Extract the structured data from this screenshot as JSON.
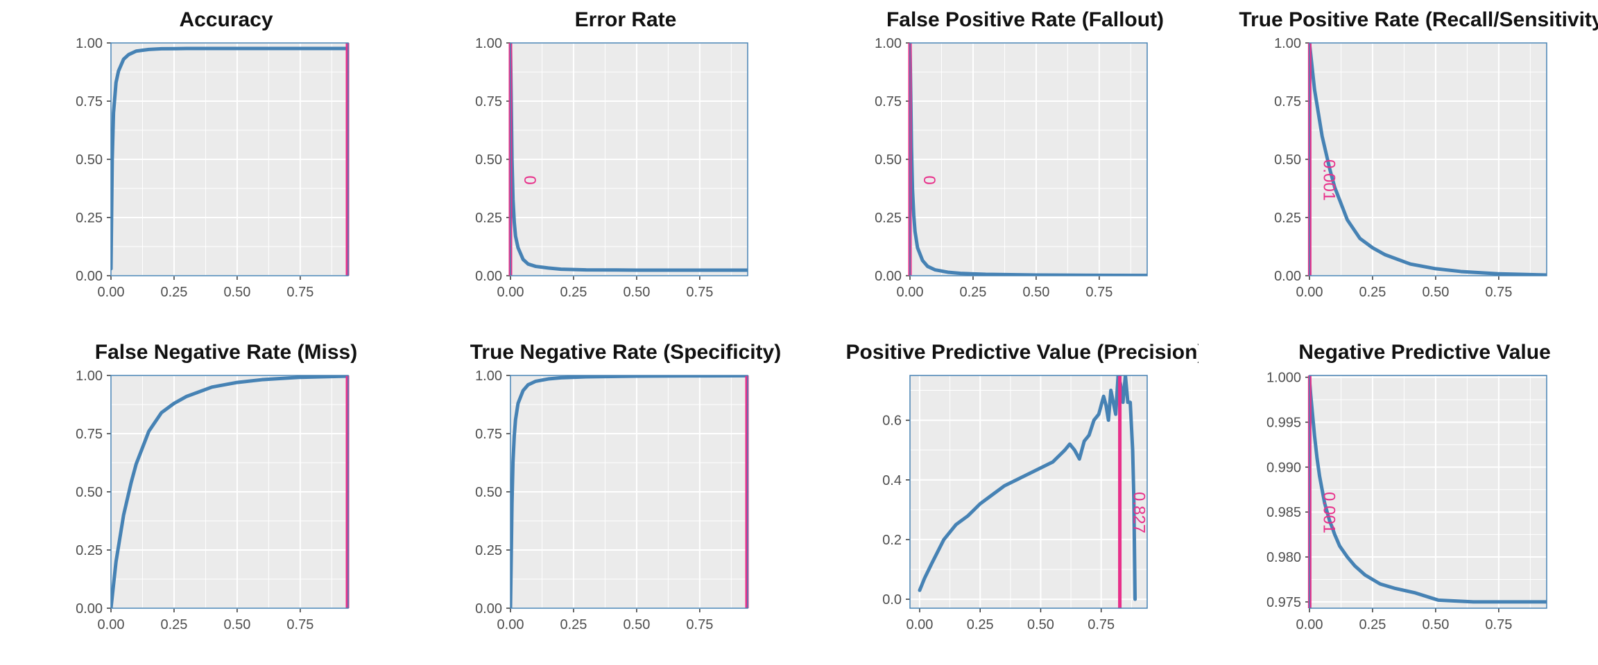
{
  "colors": {
    "curve": "#4682B4",
    "vline": "#E8308A",
    "panel_bg": "#EBEBEB",
    "grid": "#FFFFFF",
    "border": "#4682B4",
    "tick_text": "#4D4D4D"
  },
  "chart_data": [
    {
      "type": "line",
      "title": "Accuracy",
      "xlim": [
        0,
        0.94
      ],
      "ylim": [
        0,
        1.0
      ],
      "xticks": [
        "0.00",
        "0.25",
        "0.50",
        "0.75"
      ],
      "yticks": [
        "0.00",
        "0.25",
        "0.50",
        "0.75",
        "1.00"
      ],
      "grid": true,
      "x": [
        0.0,
        0.005,
        0.01,
        0.02,
        0.03,
        0.05,
        0.07,
        0.1,
        0.15,
        0.2,
        0.3,
        0.5,
        0.7,
        0.94
      ],
      "y": [
        0.03,
        0.5,
        0.7,
        0.83,
        0.88,
        0.93,
        0.95,
        0.965,
        0.972,
        0.975,
        0.976,
        0.976,
        0.976,
        0.976
      ],
      "vline": {
        "x": 0.94,
        "label": ""
      }
    },
    {
      "type": "line",
      "title": "Error Rate",
      "xlim": [
        0,
        0.94
      ],
      "ylim": [
        0,
        1.0
      ],
      "xticks": [
        "0.00",
        "0.25",
        "0.50",
        "0.75"
      ],
      "yticks": [
        "0.00",
        "0.25",
        "0.50",
        "0.75",
        "1.00"
      ],
      "grid": true,
      "x": [
        0.0,
        0.003,
        0.006,
        0.01,
        0.015,
        0.02,
        0.03,
        0.05,
        0.07,
        0.1,
        0.15,
        0.2,
        0.3,
        0.5,
        0.7,
        0.94
      ],
      "y": [
        0.98,
        0.75,
        0.5,
        0.33,
        0.23,
        0.17,
        0.12,
        0.07,
        0.05,
        0.04,
        0.033,
        0.028,
        0.025,
        0.024,
        0.024,
        0.024
      ],
      "vline": {
        "x": 0.0,
        "label": "0"
      }
    },
    {
      "type": "line",
      "title": "False Positive Rate (Fallout)",
      "xlim": [
        0,
        0.94
      ],
      "ylim": [
        0,
        1.0
      ],
      "xticks": [
        "0.00",
        "0.25",
        "0.50",
        "0.75"
      ],
      "yticks": [
        "0.00",
        "0.25",
        "0.50",
        "0.75",
        "1.00"
      ],
      "grid": true,
      "x": [
        0.0,
        0.003,
        0.006,
        0.01,
        0.015,
        0.02,
        0.03,
        0.05,
        0.07,
        0.1,
        0.15,
        0.2,
        0.3,
        0.5,
        0.7,
        0.94
      ],
      "y": [
        1.0,
        0.78,
        0.55,
        0.37,
        0.26,
        0.19,
        0.12,
        0.065,
        0.04,
        0.025,
        0.015,
        0.01,
        0.006,
        0.003,
        0.002,
        0.001
      ],
      "vline": {
        "x": 0.0,
        "label": "0"
      }
    },
    {
      "type": "line",
      "title": "True Positive Rate (Recall/Sensitivity)",
      "xlim": [
        0,
        0.94
      ],
      "ylim": [
        0,
        1.0
      ],
      "xticks": [
        "0.00",
        "0.25",
        "0.50",
        "0.75"
      ],
      "yticks": [
        "0.00",
        "0.25",
        "0.50",
        "0.75",
        "1.00"
      ],
      "grid": true,
      "x": [
        0.0,
        0.02,
        0.05,
        0.08,
        0.1,
        0.15,
        0.2,
        0.25,
        0.3,
        0.4,
        0.5,
        0.6,
        0.75,
        0.94
      ],
      "y": [
        1.0,
        0.8,
        0.6,
        0.46,
        0.38,
        0.24,
        0.16,
        0.12,
        0.09,
        0.05,
        0.03,
        0.018,
        0.008,
        0.003
      ],
      "vline": {
        "x": 0.001,
        "label": "0.001"
      }
    },
    {
      "type": "line",
      "title": "False Negative Rate (Miss)",
      "xlim": [
        0,
        0.94
      ],
      "ylim": [
        0,
        1.0
      ],
      "xticks": [
        "0.00",
        "0.25",
        "0.50",
        "0.75"
      ],
      "yticks": [
        "0.00",
        "0.25",
        "0.50",
        "0.75",
        "1.00"
      ],
      "grid": true,
      "x": [
        0.0,
        0.02,
        0.05,
        0.08,
        0.1,
        0.15,
        0.2,
        0.25,
        0.3,
        0.4,
        0.5,
        0.6,
        0.75,
        0.94
      ],
      "y": [
        0.0,
        0.2,
        0.4,
        0.54,
        0.62,
        0.76,
        0.84,
        0.88,
        0.91,
        0.95,
        0.97,
        0.982,
        0.992,
        0.997
      ],
      "vline": {
        "x": 0.94,
        "label": ""
      }
    },
    {
      "type": "line",
      "title": "True Negative Rate (Specificity)",
      "xlim": [
        0,
        0.94
      ],
      "ylim": [
        0,
        1.0
      ],
      "xticks": [
        "0.00",
        "0.25",
        "0.50",
        "0.75"
      ],
      "yticks": [
        "0.00",
        "0.25",
        "0.50",
        "0.75",
        "1.00"
      ],
      "grid": true,
      "x": [
        0.0,
        0.003,
        0.006,
        0.01,
        0.015,
        0.02,
        0.03,
        0.05,
        0.07,
        0.1,
        0.15,
        0.2,
        0.3,
        0.5,
        0.7,
        0.94
      ],
      "y": [
        0.0,
        0.22,
        0.45,
        0.63,
        0.74,
        0.81,
        0.88,
        0.935,
        0.96,
        0.975,
        0.985,
        0.99,
        0.994,
        0.997,
        0.998,
        0.999
      ],
      "vline": {
        "x": 0.94,
        "label": ""
      }
    },
    {
      "type": "line",
      "title": "Positive Predictive Value (Precision)",
      "xlim": [
        -0.04,
        0.94
      ],
      "ylim": [
        -0.03,
        0.75
      ],
      "xticks": [
        "0.00",
        "0.25",
        "0.50",
        "0.75"
      ],
      "yticks": [
        "0.0",
        "0.2",
        "0.4",
        "0.6"
      ],
      "grid": true,
      "x": [
        0.0,
        0.02,
        0.05,
        0.1,
        0.15,
        0.2,
        0.25,
        0.3,
        0.35,
        0.4,
        0.45,
        0.5,
        0.55,
        0.6,
        0.62,
        0.64,
        0.66,
        0.68,
        0.7,
        0.72,
        0.74,
        0.76,
        0.77,
        0.78,
        0.79,
        0.8,
        0.81,
        0.82,
        0.83,
        0.84,
        0.85,
        0.86,
        0.87,
        0.88,
        0.885,
        0.89
      ],
      "y": [
        0.03,
        0.07,
        0.12,
        0.2,
        0.25,
        0.28,
        0.32,
        0.35,
        0.38,
        0.4,
        0.42,
        0.44,
        0.46,
        0.5,
        0.52,
        0.5,
        0.47,
        0.53,
        0.55,
        0.6,
        0.62,
        0.68,
        0.65,
        0.6,
        0.7,
        0.66,
        0.62,
        0.75,
        0.72,
        0.66,
        0.75,
        0.66,
        0.66,
        0.5,
        0.33,
        0.0
      ],
      "vline": {
        "x": 0.827,
        "label": "0.827"
      }
    },
    {
      "type": "line",
      "title": "Negative Predictive Value",
      "xlim": [
        0,
        0.94
      ],
      "ylim": [
        0.9743,
        1.0002
      ],
      "xticks": [
        "0.00",
        "0.25",
        "0.50",
        "0.75"
      ],
      "yticks": [
        "0.975",
        "0.980",
        "0.985",
        "0.990",
        "0.995",
        "1.000"
      ],
      "grid": true,
      "x": [
        0.0,
        0.005,
        0.01,
        0.015,
        0.02,
        0.03,
        0.04,
        0.05,
        0.06,
        0.07,
        0.08,
        0.09,
        0.1,
        0.12,
        0.15,
        0.18,
        0.22,
        0.28,
        0.34,
        0.42,
        0.51,
        0.65,
        0.8,
        0.94
      ],
      "y": [
        0.9998,
        0.998,
        0.9965,
        0.995,
        0.9935,
        0.991,
        0.989,
        0.9875,
        0.986,
        0.985,
        0.984,
        0.9833,
        0.9825,
        0.9812,
        0.98,
        0.979,
        0.978,
        0.977,
        0.9765,
        0.976,
        0.9752,
        0.975,
        0.975,
        0.975
      ],
      "vline": {
        "x": 0.001,
        "label": "0.001"
      }
    }
  ]
}
